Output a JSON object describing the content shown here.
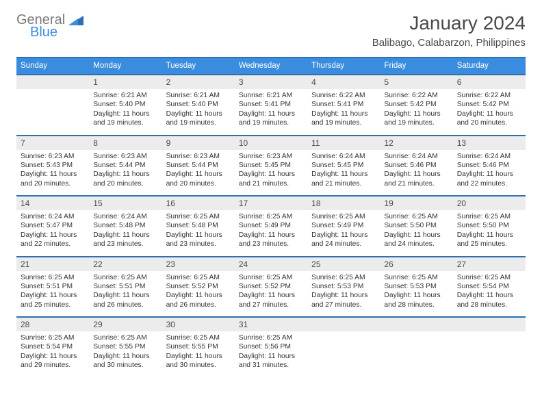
{
  "logo": {
    "part1": "General",
    "part2": "Blue"
  },
  "title": "January 2024",
  "location": "Balibago, Calabarzon, Philippines",
  "colors": {
    "header_bar": "#3a8dde",
    "header_border": "#2e6fb0",
    "daynum_bg": "#ececec",
    "text": "#4a4a4a",
    "logo_gray": "#7a7a7a",
    "logo_blue": "#3a8dde"
  },
  "weekdays": [
    "Sunday",
    "Monday",
    "Tuesday",
    "Wednesday",
    "Thursday",
    "Friday",
    "Saturday"
  ],
  "weeks": [
    {
      "nums": [
        "",
        "1",
        "2",
        "3",
        "4",
        "5",
        "6"
      ],
      "cells": [
        null,
        {
          "sunrise": "6:21 AM",
          "sunset": "5:40 PM",
          "daylight": "11 hours and 19 minutes."
        },
        {
          "sunrise": "6:21 AM",
          "sunset": "5:40 PM",
          "daylight": "11 hours and 19 minutes."
        },
        {
          "sunrise": "6:21 AM",
          "sunset": "5:41 PM",
          "daylight": "11 hours and 19 minutes."
        },
        {
          "sunrise": "6:22 AM",
          "sunset": "5:41 PM",
          "daylight": "11 hours and 19 minutes."
        },
        {
          "sunrise": "6:22 AM",
          "sunset": "5:42 PM",
          "daylight": "11 hours and 19 minutes."
        },
        {
          "sunrise": "6:22 AM",
          "sunset": "5:42 PM",
          "daylight": "11 hours and 20 minutes."
        }
      ]
    },
    {
      "nums": [
        "7",
        "8",
        "9",
        "10",
        "11",
        "12",
        "13"
      ],
      "cells": [
        {
          "sunrise": "6:23 AM",
          "sunset": "5:43 PM",
          "daylight": "11 hours and 20 minutes."
        },
        {
          "sunrise": "6:23 AM",
          "sunset": "5:44 PM",
          "daylight": "11 hours and 20 minutes."
        },
        {
          "sunrise": "6:23 AM",
          "sunset": "5:44 PM",
          "daylight": "11 hours and 20 minutes."
        },
        {
          "sunrise": "6:23 AM",
          "sunset": "5:45 PM",
          "daylight": "11 hours and 21 minutes."
        },
        {
          "sunrise": "6:24 AM",
          "sunset": "5:45 PM",
          "daylight": "11 hours and 21 minutes."
        },
        {
          "sunrise": "6:24 AM",
          "sunset": "5:46 PM",
          "daylight": "11 hours and 21 minutes."
        },
        {
          "sunrise": "6:24 AM",
          "sunset": "5:46 PM",
          "daylight": "11 hours and 22 minutes."
        }
      ]
    },
    {
      "nums": [
        "14",
        "15",
        "16",
        "17",
        "18",
        "19",
        "20"
      ],
      "cells": [
        {
          "sunrise": "6:24 AM",
          "sunset": "5:47 PM",
          "daylight": "11 hours and 22 minutes."
        },
        {
          "sunrise": "6:24 AM",
          "sunset": "5:48 PM",
          "daylight": "11 hours and 23 minutes."
        },
        {
          "sunrise": "6:25 AM",
          "sunset": "5:48 PM",
          "daylight": "11 hours and 23 minutes."
        },
        {
          "sunrise": "6:25 AM",
          "sunset": "5:49 PM",
          "daylight": "11 hours and 23 minutes."
        },
        {
          "sunrise": "6:25 AM",
          "sunset": "5:49 PM",
          "daylight": "11 hours and 24 minutes."
        },
        {
          "sunrise": "6:25 AM",
          "sunset": "5:50 PM",
          "daylight": "11 hours and 24 minutes."
        },
        {
          "sunrise": "6:25 AM",
          "sunset": "5:50 PM",
          "daylight": "11 hours and 25 minutes."
        }
      ]
    },
    {
      "nums": [
        "21",
        "22",
        "23",
        "24",
        "25",
        "26",
        "27"
      ],
      "cells": [
        {
          "sunrise": "6:25 AM",
          "sunset": "5:51 PM",
          "daylight": "11 hours and 25 minutes."
        },
        {
          "sunrise": "6:25 AM",
          "sunset": "5:51 PM",
          "daylight": "11 hours and 26 minutes."
        },
        {
          "sunrise": "6:25 AM",
          "sunset": "5:52 PM",
          "daylight": "11 hours and 26 minutes."
        },
        {
          "sunrise": "6:25 AM",
          "sunset": "5:52 PM",
          "daylight": "11 hours and 27 minutes."
        },
        {
          "sunrise": "6:25 AM",
          "sunset": "5:53 PM",
          "daylight": "11 hours and 27 minutes."
        },
        {
          "sunrise": "6:25 AM",
          "sunset": "5:53 PM",
          "daylight": "11 hours and 28 minutes."
        },
        {
          "sunrise": "6:25 AM",
          "sunset": "5:54 PM",
          "daylight": "11 hours and 28 minutes."
        }
      ]
    },
    {
      "nums": [
        "28",
        "29",
        "30",
        "31",
        "",
        "",
        ""
      ],
      "cells": [
        {
          "sunrise": "6:25 AM",
          "sunset": "5:54 PM",
          "daylight": "11 hours and 29 minutes."
        },
        {
          "sunrise": "6:25 AM",
          "sunset": "5:55 PM",
          "daylight": "11 hours and 30 minutes."
        },
        {
          "sunrise": "6:25 AM",
          "sunset": "5:55 PM",
          "daylight": "11 hours and 30 minutes."
        },
        {
          "sunrise": "6:25 AM",
          "sunset": "5:56 PM",
          "daylight": "11 hours and 31 minutes."
        },
        null,
        null,
        null
      ]
    }
  ],
  "labels": {
    "sunrise": "Sunrise:",
    "sunset": "Sunset:",
    "daylight": "Daylight:"
  }
}
